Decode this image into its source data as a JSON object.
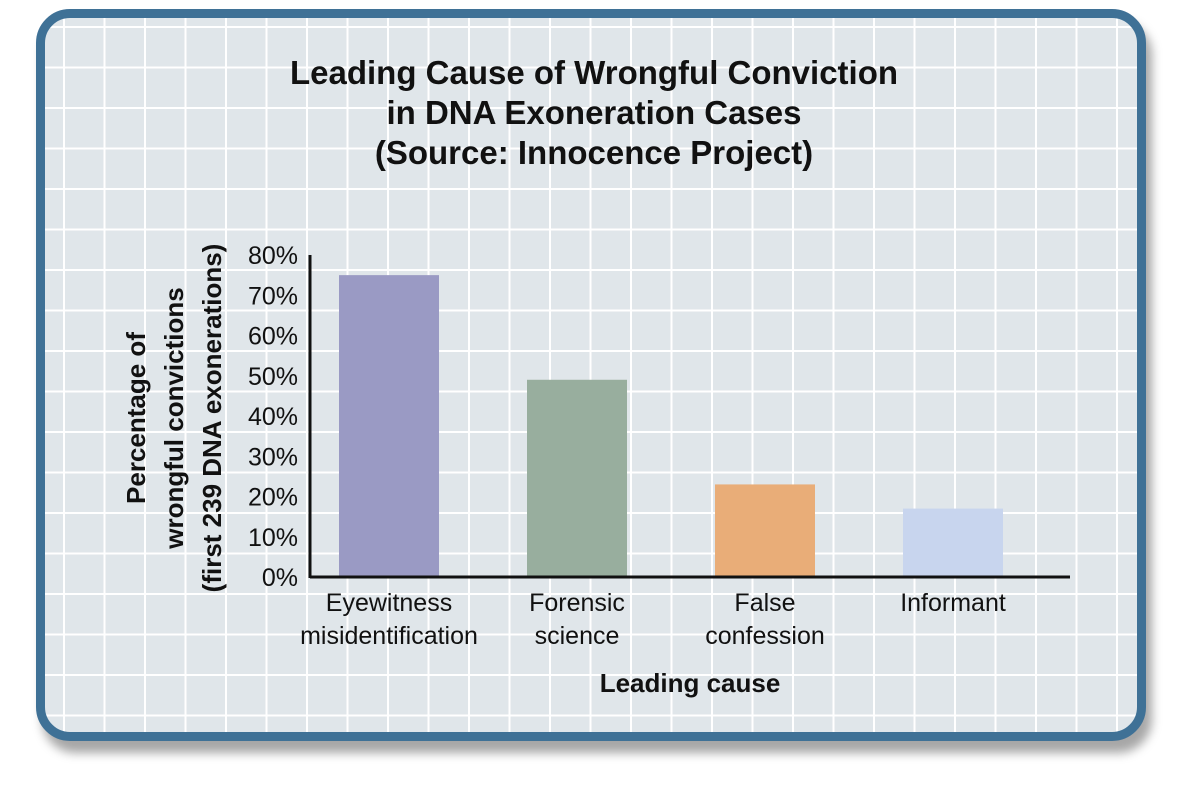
{
  "chart_data": {
    "type": "bar",
    "title_lines": [
      "Leading Cause of Wrongful Conviction",
      "in DNA Exoneration Cases",
      "(Source: Innocence Project)"
    ],
    "xlabel": "Leading cause",
    "ylabel_lines": [
      "Percentage of",
      "wrongful convictions",
      "(first 239 DNA exonerations)"
    ],
    "categories": [
      [
        "Eyewitness",
        "misidentification"
      ],
      [
        "Forensic",
        "science"
      ],
      [
        "False",
        "confession"
      ],
      [
        "Informant"
      ]
    ],
    "values": [
      75,
      49,
      23,
      17
    ],
    "colors": [
      "#9a9ac4",
      "#98ae9e",
      "#e9ad78",
      "#c8d5ee"
    ],
    "ylim": [
      0,
      80
    ],
    "yticks": [
      "0%",
      "10%",
      "20%",
      "30%",
      "40%",
      "50%",
      "60%",
      "70%",
      "80%"
    ],
    "grid": true
  }
}
